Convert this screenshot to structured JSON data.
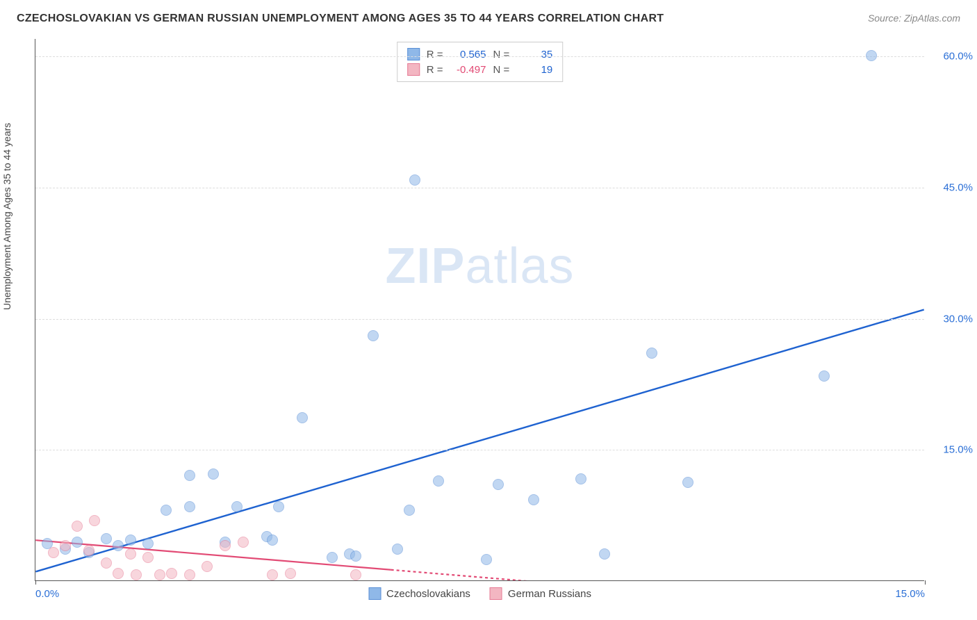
{
  "title": "CZECHOSLOVAKIAN VS GERMAN RUSSIAN UNEMPLOYMENT AMONG AGES 35 TO 44 YEARS CORRELATION CHART",
  "source": "Source: ZipAtlas.com",
  "ylabel": "Unemployment Among Ages 35 to 44 years",
  "watermark_zip": "ZIP",
  "watermark_atlas": "atlas",
  "chart": {
    "type": "scatter",
    "background_color": "#ffffff",
    "grid_color": "#dddddd",
    "axis_color": "#555555",
    "xlim": [
      0,
      15
    ],
    "ylim": [
      0,
      62
    ],
    "xticks": [
      0,
      15
    ],
    "xtick_labels": [
      "0.0%",
      "15.0%"
    ],
    "yticks": [
      15,
      30,
      45,
      60
    ],
    "ytick_labels": [
      "15.0%",
      "30.0%",
      "45.0%",
      "60.0%"
    ],
    "marker_radius": 8,
    "marker_opacity": 0.55,
    "series": [
      {
        "name": "Czechoslovakians",
        "color": "#8fb8e8",
        "border": "#5a8fd6",
        "R": "0.565",
        "N": "35",
        "trend": {
          "x1": 0,
          "y1": 1.0,
          "x2": 15,
          "y2": 31.0,
          "color": "#1e62d0",
          "width": 2.4,
          "dash": "none"
        },
        "points": [
          [
            0.2,
            4.2
          ],
          [
            0.5,
            3.6
          ],
          [
            0.7,
            4.4
          ],
          [
            0.9,
            3.2
          ],
          [
            1.2,
            4.8
          ],
          [
            1.4,
            4.0
          ],
          [
            1.6,
            4.6
          ],
          [
            1.9,
            4.2
          ],
          [
            2.2,
            8.0
          ],
          [
            2.6,
            12.0
          ],
          [
            2.6,
            8.4
          ],
          [
            3.0,
            12.2
          ],
          [
            3.2,
            4.4
          ],
          [
            3.4,
            8.4
          ],
          [
            3.9,
            5.0
          ],
          [
            4.0,
            4.6
          ],
          [
            4.1,
            8.4
          ],
          [
            4.5,
            18.6
          ],
          [
            5.0,
            2.6
          ],
          [
            5.3,
            3.0
          ],
          [
            5.4,
            2.8
          ],
          [
            5.7,
            28.0
          ],
          [
            6.1,
            3.6
          ],
          [
            6.3,
            8.0
          ],
          [
            6.4,
            45.8
          ],
          [
            6.8,
            11.4
          ],
          [
            7.6,
            2.4
          ],
          [
            7.8,
            11.0
          ],
          [
            8.4,
            9.2
          ],
          [
            9.2,
            11.6
          ],
          [
            9.6,
            3.0
          ],
          [
            10.4,
            26.0
          ],
          [
            11.0,
            11.2
          ],
          [
            13.3,
            23.4
          ],
          [
            14.1,
            60.0
          ]
        ]
      },
      {
        "name": "German Russians",
        "color": "#f3b6c2",
        "border": "#e67a94",
        "R": "-0.497",
        "N": "19",
        "trend": {
          "x1": 0,
          "y1": 4.6,
          "x2": 8.5,
          "y2": -0.2,
          "color": "#e24a74",
          "width": 2.2,
          "dash": "4 4",
          "solid_until": 6.0
        },
        "points": [
          [
            0.3,
            3.2
          ],
          [
            0.5,
            4.0
          ],
          [
            0.7,
            6.2
          ],
          [
            0.9,
            3.4
          ],
          [
            1.0,
            6.8
          ],
          [
            1.2,
            2.0
          ],
          [
            1.4,
            0.8
          ],
          [
            1.6,
            3.0
          ],
          [
            1.7,
            0.6
          ],
          [
            1.9,
            2.6
          ],
          [
            2.1,
            0.6
          ],
          [
            2.3,
            0.8
          ],
          [
            2.6,
            0.6
          ],
          [
            2.9,
            1.6
          ],
          [
            3.2,
            4.0
          ],
          [
            3.5,
            4.4
          ],
          [
            4.0,
            0.6
          ],
          [
            4.3,
            0.8
          ],
          [
            5.4,
            0.6
          ]
        ]
      }
    ]
  },
  "stats_box": {
    "rows": [
      {
        "swatch_fill": "#8fb8e8",
        "swatch_border": "#5a8fd6",
        "r_label": "R =",
        "r_val": "0.565",
        "r_color": "#1e62d0",
        "n_label": "N =",
        "n_val": "35",
        "n_color": "#1e62d0"
      },
      {
        "swatch_fill": "#f3b6c2",
        "swatch_border": "#e67a94",
        "r_label": "R =",
        "r_val": "-0.497",
        "r_color": "#e24a74",
        "n_label": "N =",
        "n_val": "19",
        "n_color": "#1e62d0"
      }
    ]
  },
  "legend": [
    {
      "swatch_fill": "#8fb8e8",
      "swatch_border": "#5a8fd6",
      "label": "Czechoslovakians"
    },
    {
      "swatch_fill": "#f3b6c2",
      "swatch_border": "#e67a94",
      "label": "German Russians"
    }
  ]
}
